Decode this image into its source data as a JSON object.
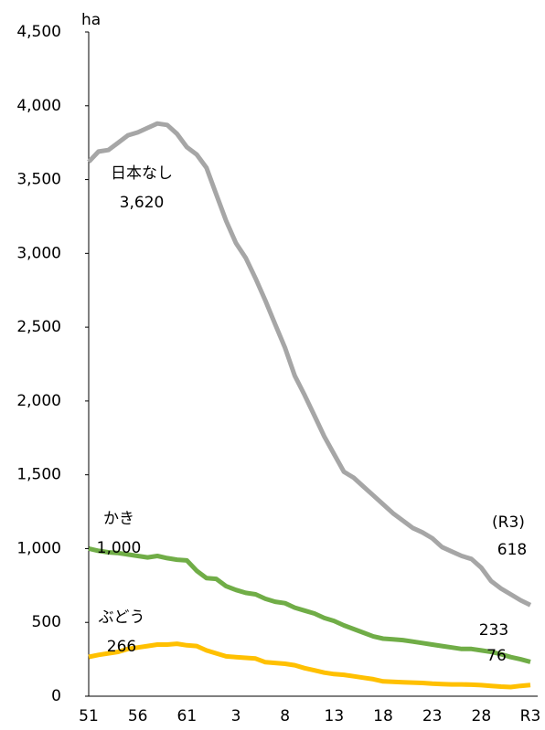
{
  "chart_data": {
    "type": "line",
    "categories": [
      "51",
      null,
      null,
      null,
      null,
      "56",
      null,
      null,
      null,
      null,
      "61",
      null,
      null,
      null,
      null,
      "3",
      null,
      null,
      null,
      null,
      "8",
      null,
      null,
      null,
      null,
      "13",
      null,
      null,
      null,
      null,
      "18",
      null,
      null,
      null,
      null,
      "23",
      null,
      null,
      null,
      null,
      "28",
      null,
      null,
      null,
      null,
      "R3"
    ],
    "series": [
      {
        "name": "日本なし",
        "color": "#a6a6a6",
        "values": [
          3620,
          3690,
          3700,
          3750,
          3800,
          3820,
          3850,
          3880,
          3870,
          3810,
          3720,
          3670,
          3580,
          3400,
          3220,
          3070,
          2970,
          2830,
          2680,
          2520,
          2360,
          2170,
          2040,
          1900,
          1760,
          1640,
          1520,
          1480,
          1420,
          1360,
          1300,
          1240,
          1190,
          1140,
          1110,
          1070,
          1010,
          980,
          950,
          930,
          870,
          780,
          730,
          690,
          650,
          618
        ]
      },
      {
        "name": "かき",
        "color": "#70ad47",
        "values": [
          1000,
          985,
          975,
          970,
          960,
          950,
          940,
          950,
          935,
          925,
          920,
          850,
          800,
          795,
          745,
          720,
          700,
          690,
          660,
          640,
          630,
          600,
          580,
          560,
          530,
          510,
          480,
          455,
          430,
          405,
          390,
          385,
          380,
          370,
          360,
          350,
          340,
          330,
          320,
          320,
          310,
          300,
          285,
          265,
          250,
          233
        ]
      },
      {
        "name": "ぶどう",
        "color": "#ffc000",
        "values": [
          266,
          280,
          290,
          300,
          320,
          330,
          340,
          350,
          350,
          355,
          345,
          340,
          310,
          290,
          270,
          265,
          260,
          255,
          230,
          225,
          220,
          210,
          190,
          175,
          160,
          150,
          145,
          135,
          125,
          115,
          100,
          98,
          95,
          92,
          90,
          85,
          82,
          80,
          80,
          78,
          75,
          70,
          65,
          62,
          70,
          76
        ]
      }
    ],
    "y_unit": "ha",
    "annotations": [
      {
        "text": "日本なし"
      },
      {
        "text": "3,620"
      },
      {
        "text": "かき"
      },
      {
        "text": "1,000"
      },
      {
        "text": "ぶどう"
      },
      {
        "text": "266"
      },
      {
        "text": "(R3)"
      },
      {
        "text": "618"
      },
      {
        "text": "233"
      },
      {
        "text": "76"
      }
    ],
    "ylim": [
      0,
      4500
    ],
    "yticks": [
      0,
      500,
      {
        "value": 1000,
        "label": "1,000"
      },
      {
        "value": 1500,
        "label": "1,500"
      },
      {
        "value": 2000,
        "label": "2,000"
      },
      {
        "value": 2500,
        "label": "2,500"
      },
      {
        "value": 3000,
        "label": "3,000"
      },
      {
        "value": 3500,
        "label": "3,500"
      },
      {
        "value": 4000,
        "label": "4,000"
      },
      {
        "value": 4500,
        "label": "4,500"
      }
    ],
    "grid": false
  }
}
